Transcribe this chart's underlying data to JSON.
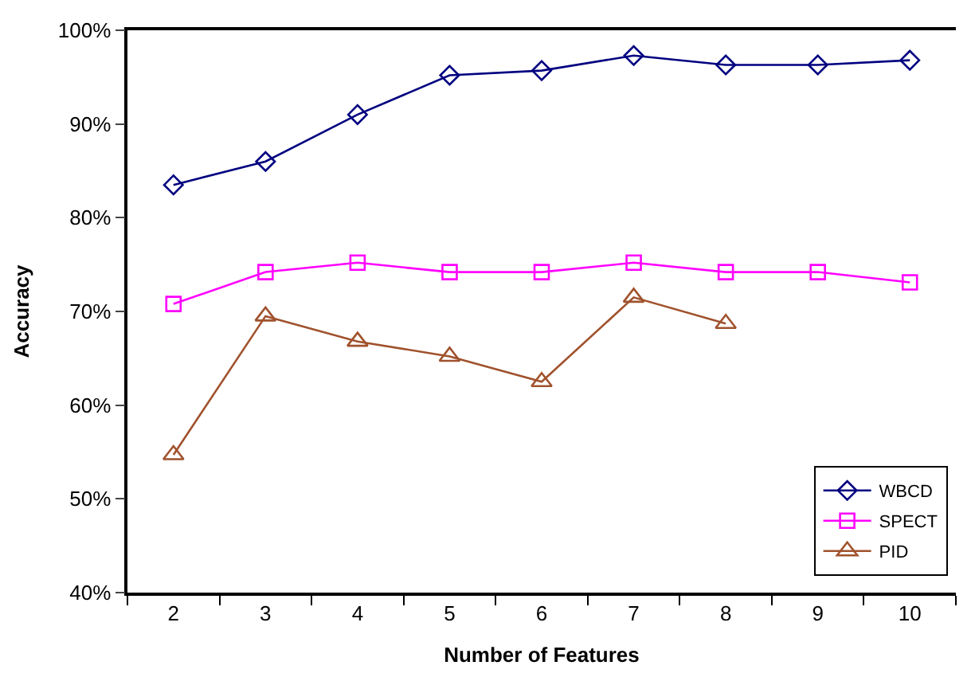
{
  "chart_data": {
    "type": "line",
    "xlabel": "Number of Features",
    "ylabel": "Accuracy",
    "x": [
      2,
      3,
      4,
      5,
      6,
      7,
      8,
      9,
      10
    ],
    "xlim": [
      1.5,
      10.5
    ],
    "xticks": [
      2,
      3,
      4,
      5,
      6,
      7,
      8,
      9,
      10
    ],
    "ylim": [
      40,
      100
    ],
    "yticks": [
      {
        "value": 40,
        "label": "40%"
      },
      {
        "value": 50,
        "label": "50%"
      },
      {
        "value": 60,
        "label": "60%"
      },
      {
        "value": 70,
        "label": "70%"
      },
      {
        "value": 80,
        "label": "80%"
      },
      {
        "value": 90,
        "label": "90%"
      },
      {
        "value": 100,
        "label": "100%"
      }
    ],
    "legend": "bottom right",
    "line_style": "solid",
    "series": [
      {
        "name": "WBCD",
        "color": "#000080",
        "marker": "diamond",
        "values": [
          83.5,
          86.0,
          91.0,
          95.2,
          95.7,
          97.3,
          96.3,
          96.3,
          96.8
        ]
      },
      {
        "name": "SPECT",
        "color": "#ff00ff",
        "marker": "square",
        "values": [
          70.8,
          74.2,
          75.2,
          74.2,
          74.2,
          75.2,
          74.2,
          74.2,
          73.1
        ]
      },
      {
        "name": "PID",
        "color": "#a0522d",
        "marker": "triangle",
        "values": [
          54.7,
          69.5,
          66.8,
          65.2,
          62.5,
          71.5,
          68.7,
          null,
          null
        ]
      }
    ]
  }
}
